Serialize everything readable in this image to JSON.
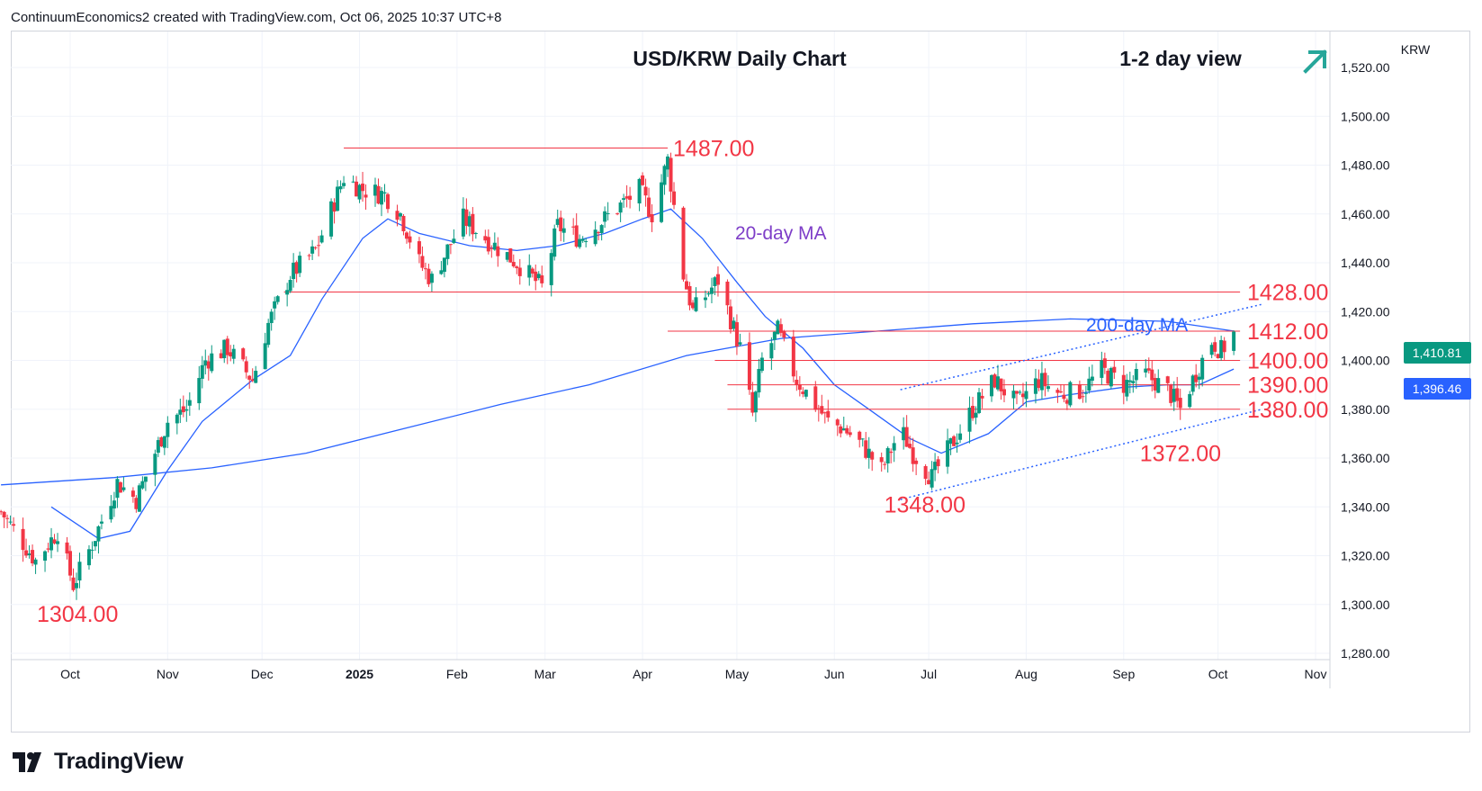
{
  "header": {
    "attribution": "ContinuumEconomics2 created with TradingView.com, Oct 06, 2025 10:37 UTC+8"
  },
  "chart": {
    "title": "USD/KRW Daily Chart",
    "view_label": "1-2 day view",
    "currency_label": "KRW",
    "price_tag_last": "1,410.81",
    "price_tag_ma": "1,396.46",
    "ma20_label": "20-day MA",
    "ma200_label": "200-day MA"
  },
  "footer": {
    "logo_text": "TradingView"
  },
  "colors": {
    "up": "#089981",
    "down": "#f23645",
    "ma": "#2962ff",
    "level": "#f23645",
    "trend": "#2962ff",
    "arrow": "#26a69a",
    "ma20_label": "#7e3ec8",
    "ma200_label": "#2962ff"
  },
  "chart_data": {
    "type": "candlestick",
    "title": "USD/KRW Daily Chart",
    "ylim": [
      1280,
      1530
    ],
    "y_ticks": [
      1280,
      1300,
      1320,
      1340,
      1360,
      1380,
      1400,
      1420,
      1440,
      1460,
      1480,
      1500,
      1520
    ],
    "y_tick_labels": [
      "1,280.00",
      "1,300.00",
      "1,320.00",
      "1,340.00",
      "1,360.00",
      "1,380.00",
      "1,400.00",
      "1,420.00",
      "1,440.00",
      "1,460.00",
      "1,480.00",
      "1,500.00",
      "1,520.00"
    ],
    "x_ticks": [
      {
        "label": "Oct",
        "date": "2024-10-01",
        "bold": false
      },
      {
        "label": "Nov",
        "date": "2024-11-01",
        "bold": false
      },
      {
        "label": "Dec",
        "date": "2024-12-01",
        "bold": false
      },
      {
        "label": "2025",
        "date": "2025-01-01",
        "bold": true
      },
      {
        "label": "Feb",
        "date": "2025-02-01",
        "bold": false
      },
      {
        "label": "Mar",
        "date": "2025-03-01",
        "bold": false
      },
      {
        "label": "Apr",
        "date": "2025-04-01",
        "bold": false
      },
      {
        "label": "May",
        "date": "2025-05-01",
        "bold": false
      },
      {
        "label": "Jun",
        "date": "2025-06-01",
        "bold": false
      },
      {
        "label": "Jul",
        "date": "2025-07-01",
        "bold": false
      },
      {
        "label": "Aug",
        "date": "2025-08-01",
        "bold": false
      },
      {
        "label": "Sep",
        "date": "2025-09-01",
        "bold": false
      },
      {
        "label": "Oct",
        "date": "2025-10-01",
        "bold": false
      },
      {
        "label": "Nov",
        "date": "2025-11-01",
        "bold": false
      }
    ],
    "grid": true,
    "last_price": 1410.81,
    "ma_value_tag": 1396.46,
    "price_path": [
      [
        "2024-09-09",
        1338
      ],
      [
        "2024-09-20",
        1318
      ],
      [
        "2024-09-27",
        1330
      ],
      [
        "2024-10-02",
        1308
      ],
      [
        "2024-10-08",
        1325
      ],
      [
        "2024-10-16",
        1350
      ],
      [
        "2024-10-22",
        1343
      ],
      [
        "2024-11-01",
        1375
      ],
      [
        "2024-11-07",
        1380
      ],
      [
        "2024-11-13",
        1400
      ],
      [
        "2024-11-20",
        1405
      ],
      [
        "2024-11-28",
        1392
      ],
      [
        "2024-12-03",
        1415
      ],
      [
        "2024-12-10",
        1435
      ],
      [
        "2024-12-18",
        1445
      ],
      [
        "2024-12-27",
        1475
      ],
      [
        "2025-01-02",
        1470
      ],
      [
        "2025-01-09",
        1468
      ],
      [
        "2025-01-14",
        1460
      ],
      [
        "2025-01-20",
        1440
      ],
      [
        "2025-01-24",
        1433
      ],
      [
        "2025-02-03",
        1458
      ],
      [
        "2025-02-12",
        1448
      ],
      [
        "2025-02-20",
        1440
      ],
      [
        "2025-02-28",
        1430
      ],
      [
        "2025-03-05",
        1455
      ],
      [
        "2025-03-12",
        1450
      ],
      [
        "2025-03-20",
        1458
      ],
      [
        "2025-03-31",
        1470
      ],
      [
        "2025-04-04",
        1460
      ],
      [
        "2025-04-09",
        1482
      ],
      [
        "2025-04-14",
        1435
      ],
      [
        "2025-04-17",
        1420
      ],
      [
        "2025-04-25",
        1433
      ],
      [
        "2025-05-02",
        1405
      ],
      [
        "2025-05-06",
        1378
      ],
      [
        "2025-05-09",
        1400
      ],
      [
        "2025-05-14",
        1412
      ],
      [
        "2025-05-20",
        1392
      ],
      [
        "2025-05-30",
        1375
      ],
      [
        "2025-06-04",
        1372
      ],
      [
        "2025-06-10",
        1365
      ],
      [
        "2025-06-16",
        1355
      ],
      [
        "2025-06-22",
        1372
      ],
      [
        "2025-06-26",
        1362
      ],
      [
        "2025-07-02",
        1352
      ],
      [
        "2025-07-08",
        1365
      ],
      [
        "2025-07-15",
        1380
      ],
      [
        "2025-07-22",
        1392
      ],
      [
        "2025-07-29",
        1382
      ],
      [
        "2025-08-05",
        1392
      ],
      [
        "2025-08-12",
        1386
      ],
      [
        "2025-08-19",
        1388
      ],
      [
        "2025-08-25",
        1396
      ],
      [
        "2025-09-01",
        1390
      ],
      [
        "2025-09-08",
        1394
      ],
      [
        "2025-09-15",
        1388
      ],
      [
        "2025-09-19",
        1380
      ],
      [
        "2025-09-24",
        1395
      ],
      [
        "2025-09-29",
        1408
      ],
      [
        "2025-10-02",
        1404
      ],
      [
        "2025-10-06",
        1410.81
      ]
    ],
    "ma20_path": [
      [
        "2024-09-25",
        1340
      ],
      [
        "2024-10-10",
        1327
      ],
      [
        "2024-10-20",
        1330
      ],
      [
        "2024-11-01",
        1355
      ],
      [
        "2024-11-12",
        1375
      ],
      [
        "2024-11-28",
        1392
      ],
      [
        "2024-12-10",
        1402
      ],
      [
        "2024-12-20",
        1425
      ],
      [
        "2025-01-02",
        1450
      ],
      [
        "2025-01-10",
        1458
      ],
      [
        "2025-01-20",
        1452
      ],
      [
        "2025-02-05",
        1447
      ],
      [
        "2025-02-20",
        1445
      ],
      [
        "2025-03-05",
        1447
      ],
      [
        "2025-03-20",
        1452
      ],
      [
        "2025-04-01",
        1458
      ],
      [
        "2025-04-10",
        1462
      ],
      [
        "2025-04-20",
        1450
      ],
      [
        "2025-05-01",
        1432
      ],
      [
        "2025-05-10",
        1418
      ],
      [
        "2025-05-22",
        1405
      ],
      [
        "2025-06-01",
        1390
      ],
      [
        "2025-06-12",
        1380
      ],
      [
        "2025-06-25",
        1368
      ],
      [
        "2025-07-05",
        1362
      ],
      [
        "2025-07-20",
        1370
      ],
      [
        "2025-08-01",
        1383
      ],
      [
        "2025-08-15",
        1386
      ],
      [
        "2025-09-01",
        1389
      ],
      [
        "2025-09-15",
        1390
      ],
      [
        "2025-09-25",
        1390
      ],
      [
        "2025-10-06",
        1396.46
      ]
    ],
    "ma200_path": [
      [
        "2024-09-09",
        1349
      ],
      [
        "2024-10-15",
        1352
      ],
      [
        "2024-11-15",
        1356
      ],
      [
        "2024-12-15",
        1362
      ],
      [
        "2025-01-15",
        1372
      ],
      [
        "2025-02-15",
        1382
      ],
      [
        "2025-03-15",
        1390
      ],
      [
        "2025-04-15",
        1402
      ],
      [
        "2025-05-15",
        1409
      ],
      [
        "2025-06-15",
        1412
      ],
      [
        "2025-07-15",
        1415
      ],
      [
        "2025-08-15",
        1417
      ],
      [
        "2025-09-15",
        1416
      ],
      [
        "2025-10-06",
        1412
      ]
    ],
    "levels": [
      {
        "label": "1487.00",
        "value": 1487,
        "from": "2024-12-27",
        "to": "2025-04-09"
      },
      {
        "label": "1428.00",
        "value": 1428,
        "from": "2024-12-08",
        "to": "2025-10-08"
      },
      {
        "label": "1412.00",
        "value": 1412,
        "from": "2025-04-09",
        "to": "2025-10-08"
      },
      {
        "label": "1400.00",
        "value": 1400,
        "from": "2025-04-24",
        "to": "2025-10-08"
      },
      {
        "label": "1390.00",
        "value": 1390,
        "from": "2025-04-28",
        "to": "2025-10-08"
      },
      {
        "label": "1380.00",
        "value": 1380,
        "from": "2025-04-28",
        "to": "2025-10-08"
      }
    ],
    "annotations": [
      {
        "label": "1304.00",
        "date": "2024-10-03",
        "value": 1304
      },
      {
        "label": "1348.00",
        "date": "2025-06-30",
        "value": 1348
      },
      {
        "label": "1372.00",
        "date": "2025-09-17",
        "value": 1372
      }
    ],
    "trend_channel": [
      {
        "from": [
          "2025-06-22",
          1343
        ],
        "to": [
          "2025-10-15",
          1380
        ]
      },
      {
        "from": [
          "2025-06-22",
          1388
        ],
        "to": [
          "2025-10-15",
          1423
        ]
      }
    ]
  }
}
